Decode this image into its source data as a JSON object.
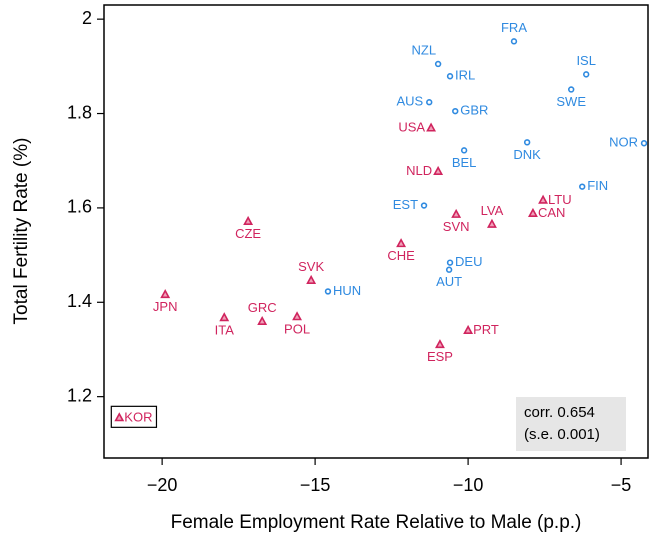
{
  "chart_data": {
    "type": "scatter",
    "xlabel": "Female Employment Rate Relative to Male (p.p.)",
    "ylabel": "Total Fertility Rate (%)",
    "xlim": [
      -21.9,
      -4.12
    ],
    "ylim": [
      1.07,
      2.03
    ],
    "xticks": [
      {
        "value": -20,
        "label": "−20"
      },
      {
        "value": -15,
        "label": "−15"
      },
      {
        "value": -10,
        "label": "−10"
      },
      {
        "value": -5,
        "label": "−5"
      }
    ],
    "yticks": [
      1.2,
      1.4,
      1.6,
      1.8,
      2
    ],
    "series": [
      {
        "color": "#2f8ae0",
        "marker": "circle",
        "labels": [
          "NZL",
          "FRA",
          "IRL",
          "ISL",
          "SWE",
          "AUS",
          "GBR",
          "DNK",
          "NOR",
          "BEL",
          "FIN",
          "EST",
          "DEU",
          "AUT",
          "HUN"
        ],
        "x": [
          -10.98,
          -8.5,
          -10.59,
          -6.14,
          -6.63,
          -11.27,
          -10.42,
          -8.07,
          -4.25,
          -10.13,
          -6.27,
          -11.44,
          -10.59,
          -10.62,
          -14.58
        ],
        "values": [
          1.905,
          1.953,
          1.879,
          1.883,
          1.851,
          1.824,
          1.805,
          1.739,
          1.737,
          1.722,
          1.645,
          1.605,
          1.484,
          1.469,
          1.423
        ]
      },
      {
        "color": "#d0245e",
        "marker": "triangle",
        "labels": [
          "USA",
          "NLD",
          "LTU",
          "CAN",
          "SVN",
          "LVA",
          "CZE",
          "CHE",
          "SVK",
          "JPN",
          "ITA",
          "GRC",
          "POL",
          "ESP",
          "PRT",
          "KOR"
        ],
        "x": [
          -11.21,
          -10.98,
          -7.55,
          -7.88,
          -10.39,
          -9.22,
          -17.19,
          -12.19,
          -15.13,
          -19.9,
          -17.97,
          -16.73,
          -15.59,
          -10.92,
          -10.0,
          -21.4
        ],
        "values": [
          1.769,
          1.677,
          1.616,
          1.588,
          1.586,
          1.565,
          1.571,
          1.524,
          1.446,
          1.416,
          1.367,
          1.359,
          1.369,
          1.31,
          1.34,
          1.155
        ]
      }
    ],
    "annotation": [
      "corr. 0.654",
      "(s.e. 0.001)"
    ]
  }
}
